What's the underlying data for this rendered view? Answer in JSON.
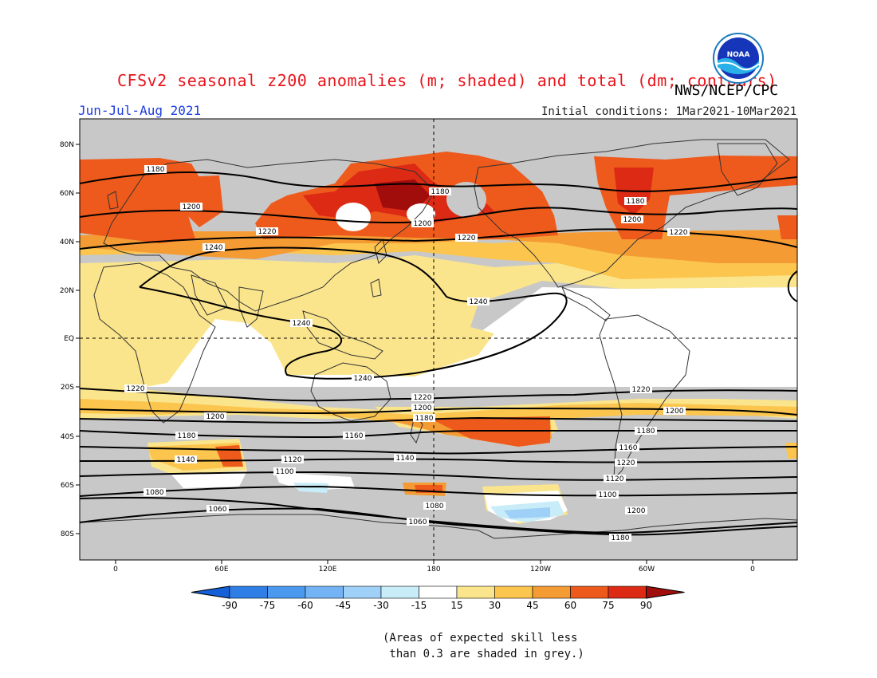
{
  "header": {
    "title": "CFSv2 seasonal z200 anomalies (m; shaded) and total (dm; contours)",
    "agency": "NWS/NCEP/CPC",
    "season": "Jun-Jul-Aug 2021",
    "initial_conditions": "Initial conditions: 1Mar2021-10Mar2021",
    "logo_icon": "noaa-logo-icon"
  },
  "map": {
    "lat_labels": [
      "80N",
      "60N",
      "40N",
      "20N",
      "EQ",
      "20S",
      "40S",
      "60S",
      "80S"
    ],
    "lon_labels": [
      "0",
      "60E",
      "120E",
      "180",
      "120W",
      "60W",
      "0"
    ],
    "contour_labels": [
      "1180",
      "1200",
      "1220",
      "1240",
      "1180",
      "1200",
      "1220",
      "1180",
      "1200",
      "1220",
      "1240",
      "1240",
      "1240",
      "1220",
      "1220",
      "1200",
      "1200",
      "1180",
      "1180",
      "1160",
      "1140",
      "1120",
      "1100",
      "1080",
      "1060",
      "1060",
      "1080",
      "1100",
      "1120",
      "1140",
      "1160",
      "1180",
      "1200",
      "1220",
      "1220",
      "1200",
      "1180",
      "1160",
      "1140",
      "1120",
      "1100",
      "1080",
      "1060"
    ],
    "mask_color": "#c8c8c8"
  },
  "colorbar": {
    "ticks": [
      "-90",
      "-75",
      "-60",
      "-45",
      "-30",
      "-15",
      "15",
      "30",
      "45",
      "60",
      "75",
      "90"
    ],
    "colors": [
      "#1560d8",
      "#2f7ee6",
      "#4a99ef",
      "#74b4f4",
      "#9fd0f8",
      "#c8ecf8",
      "#ffffff",
      "#fbe58c",
      "#fbc54e",
      "#f49b34",
      "#ee5a1c",
      "#dc2a14",
      "#a00d0b"
    ]
  },
  "footnote": {
    "line1": "(Areas of expected skill less",
    "line2": " than 0.3 are shaded in grey.)"
  }
}
